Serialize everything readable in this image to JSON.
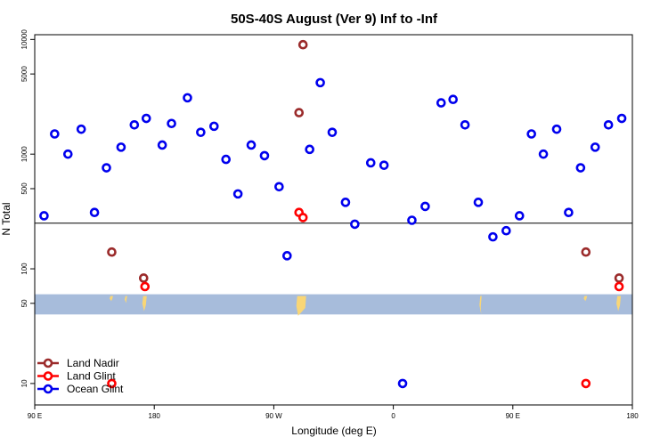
{
  "chart_data": {
    "type": "scatter",
    "title": "50S-40S August (Ver 9)   Inf to -Inf",
    "xlabel": "Longitude (deg E)",
    "ylabel": "N Total",
    "y_scale": "log",
    "xlim": [
      90,
      540
    ],
    "ylim": [
      6.5,
      11000
    ],
    "x_ticks": [
      {
        "value": 90,
        "label": "90 E"
      },
      {
        "value": 180,
        "label": "180"
      },
      {
        "value": 270,
        "label": "90 W"
      },
      {
        "value": 360,
        "label": "0"
      },
      {
        "value": 450,
        "label": "90 E"
      },
      {
        "value": 540,
        "label": "180"
      }
    ],
    "y_ticks": [
      {
        "value": 10,
        "label": "10"
      },
      {
        "value": 50,
        "label": "50"
      },
      {
        "value": 100,
        "label": "100"
      },
      {
        "value": 500,
        "label": "500"
      },
      {
        "value": 1000,
        "label": "1000"
      },
      {
        "value": 5000,
        "label": "5000"
      },
      {
        "value": 10000,
        "label": "10000"
      }
    ],
    "reference_line_y": 250,
    "land_mask_band": {
      "y_range": [
        40,
        60
      ],
      "color": "#a7bcdb",
      "land_color": "#f9d676"
    },
    "legend_position": "bottom-left",
    "series": [
      {
        "name": "Land Nadir",
        "color": "#9b2b2b",
        "points": [
          [
            148,
            140
          ],
          [
            172,
            83
          ],
          [
            292,
            9000
          ],
          [
            289,
            2300
          ],
          [
            505,
            140
          ],
          [
            530,
            83
          ]
        ]
      },
      {
        "name": "Land Glint",
        "color": "#ff0000",
        "points": [
          [
            148,
            10
          ],
          [
            173,
            70
          ],
          [
            289,
            310
          ],
          [
            292,
            280
          ],
          [
            505,
            10
          ],
          [
            530,
            70
          ]
        ]
      },
      {
        "name": "Ocean Glint",
        "color": "#0000ee",
        "points": [
          [
            97,
            290
          ],
          [
            105,
            1500
          ],
          [
            115,
            1000
          ],
          [
            125,
            1650
          ],
          [
            135,
            310
          ],
          [
            144,
            760
          ],
          [
            155,
            1150
          ],
          [
            165,
            1800
          ],
          [
            174,
            2050
          ],
          [
            186,
            1200
          ],
          [
            193,
            1850
          ],
          [
            205,
            3100
          ],
          [
            215,
            1550
          ],
          [
            225,
            1750
          ],
          [
            234,
            900
          ],
          [
            243,
            450
          ],
          [
            253,
            1200
          ],
          [
            263,
            970
          ],
          [
            274,
            520
          ],
          [
            280,
            130
          ],
          [
            297,
            1100
          ],
          [
            305,
            4200
          ],
          [
            314,
            1550
          ],
          [
            324,
            380
          ],
          [
            331,
            245
          ],
          [
            343,
            840
          ],
          [
            353,
            800
          ],
          [
            367,
            10
          ],
          [
            374,
            265
          ],
          [
            384,
            350
          ],
          [
            396,
            2800
          ],
          [
            405,
            3000
          ],
          [
            414,
            1800
          ],
          [
            424,
            380
          ],
          [
            435,
            190
          ],
          [
            445,
            215
          ],
          [
            455,
            290
          ],
          [
            464,
            1500
          ],
          [
            473,
            1000
          ],
          [
            483,
            1650
          ],
          [
            492,
            310
          ],
          [
            501,
            760
          ],
          [
            512,
            1150
          ],
          [
            522,
            1800
          ],
          [
            532,
            2050
          ]
        ]
      }
    ]
  }
}
